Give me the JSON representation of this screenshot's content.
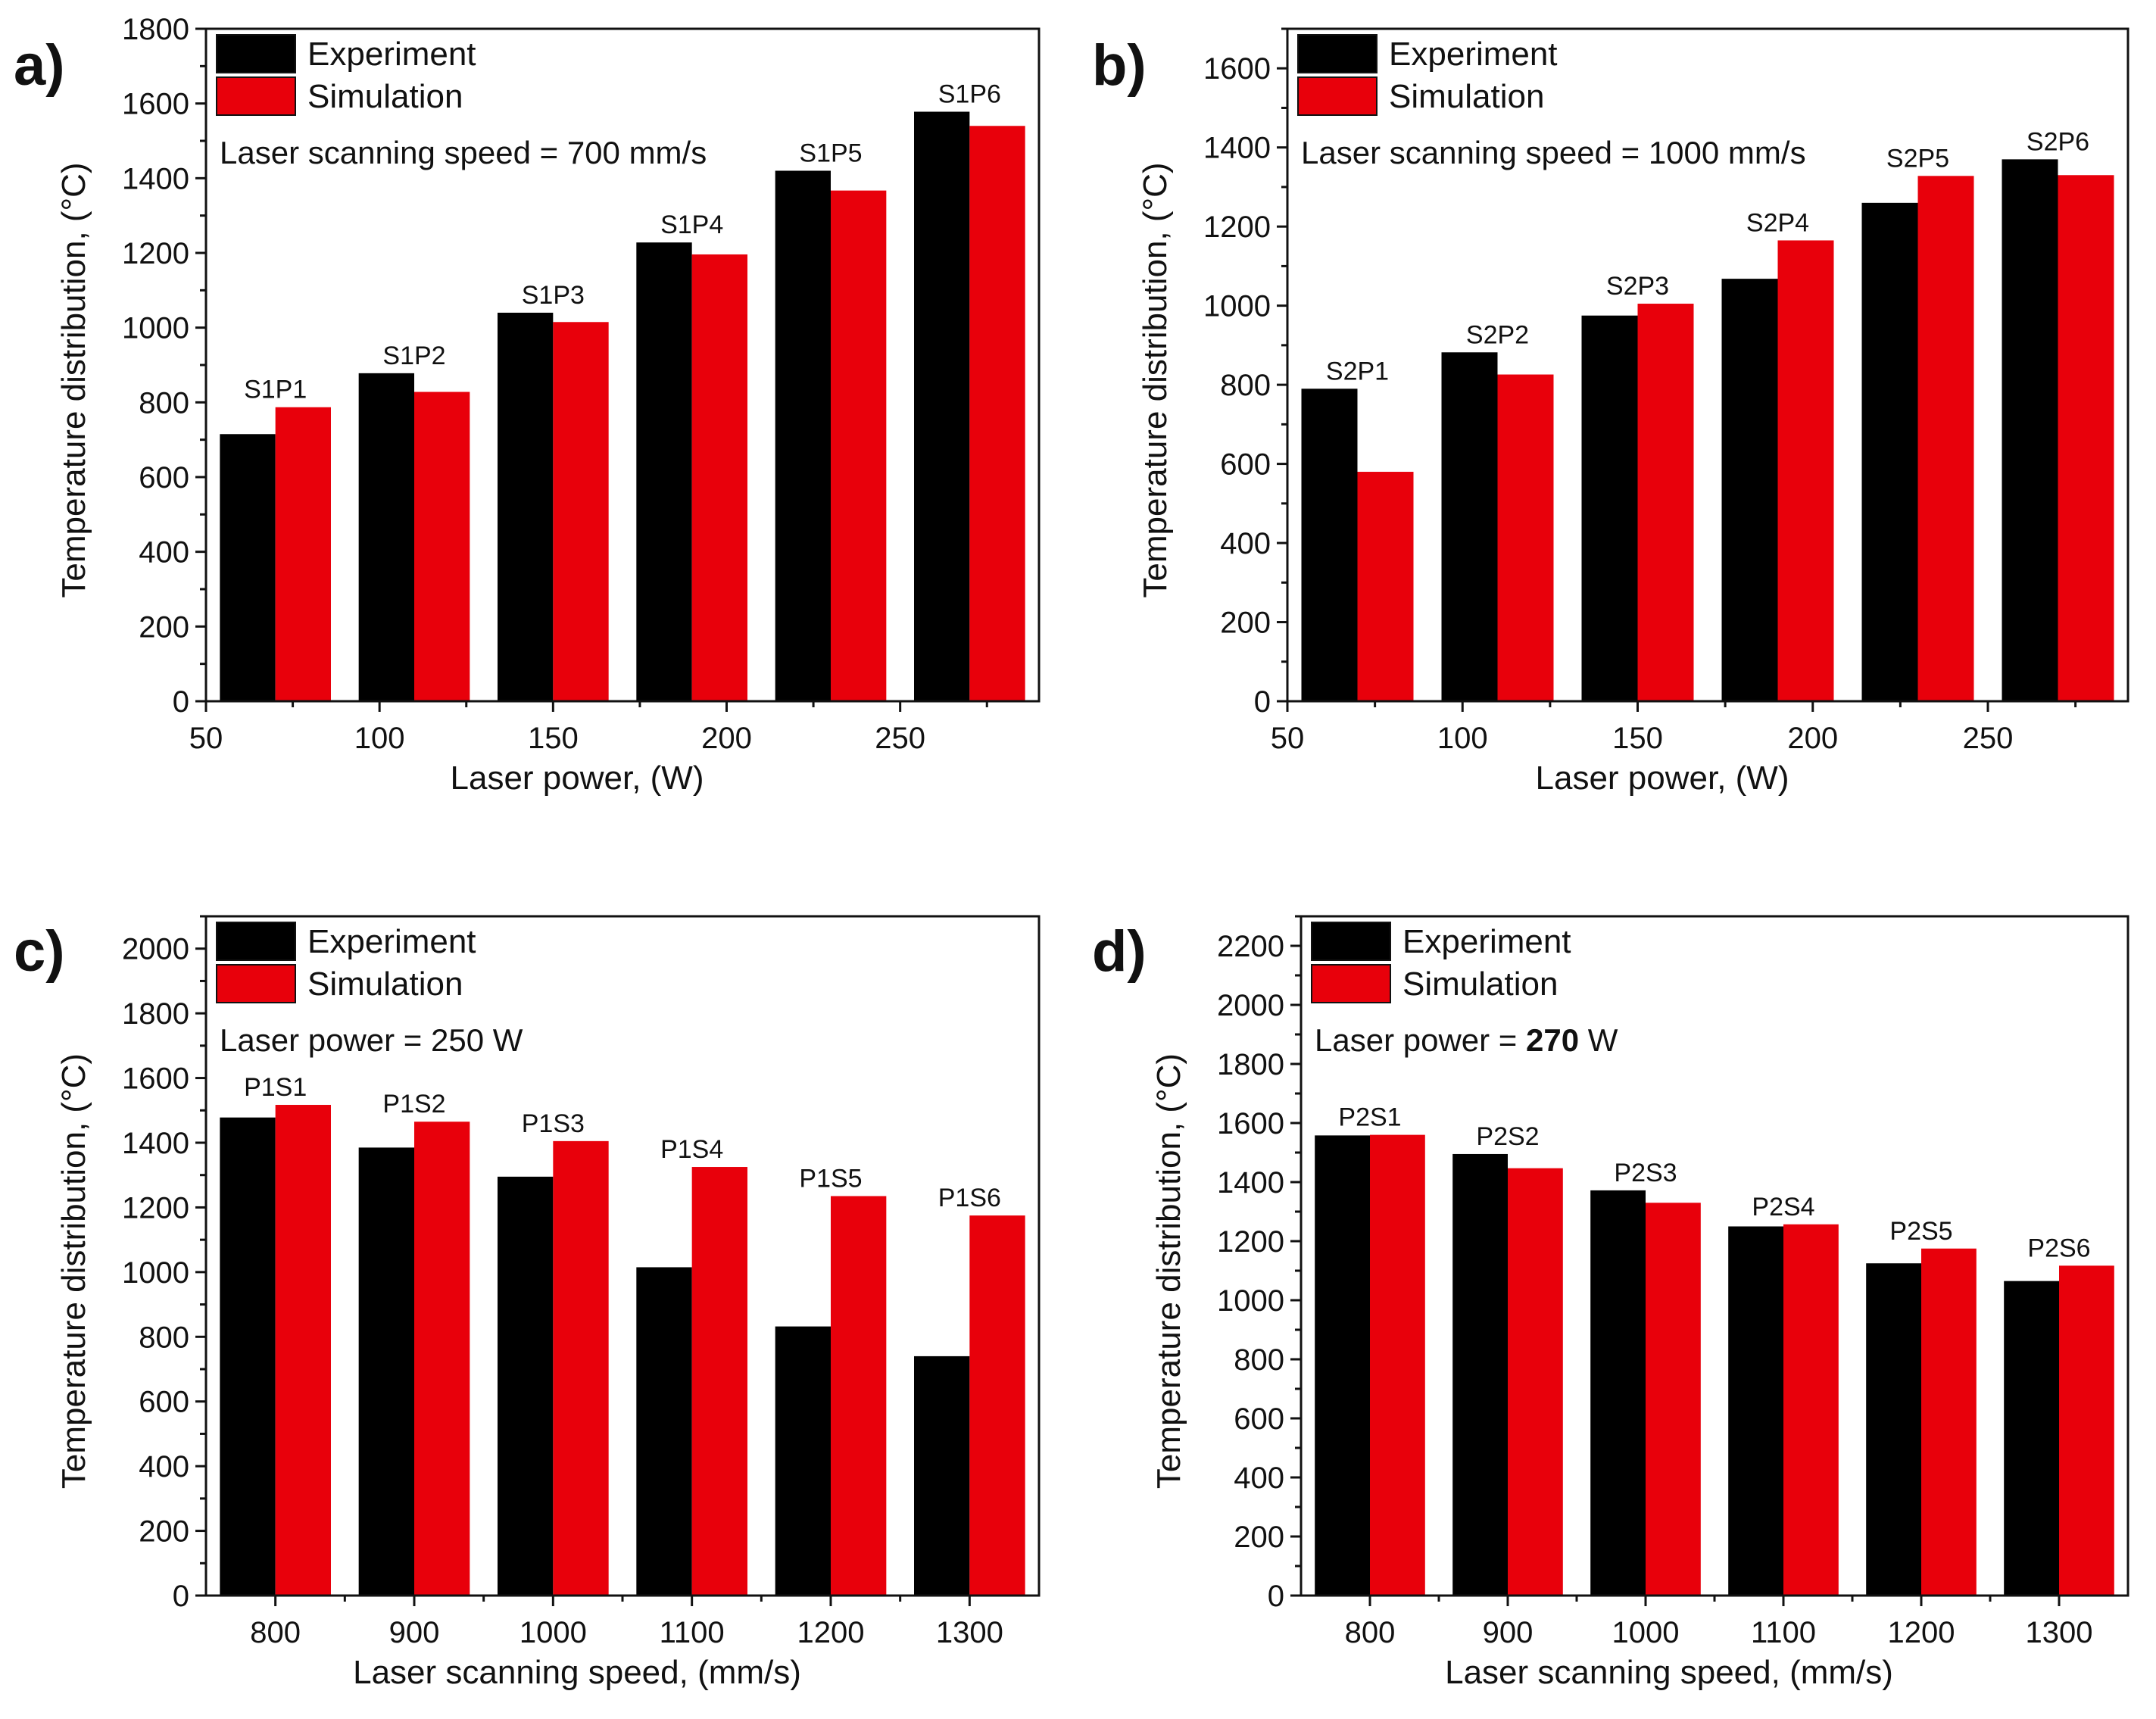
{
  "chart_data": [
    {
      "type": "bar",
      "panel_label": "a)",
      "series": [
        {
          "name": "Experiment",
          "values": [
            715,
            878,
            1040,
            1228,
            1420,
            1578
          ]
        },
        {
          "name": "Simulation",
          "values": [
            787,
            828,
            1015,
            1196,
            1367,
            1540
          ]
        }
      ],
      "bar_labels": [
        "S1P1",
        "S1P2",
        "S1P3",
        "S1P4",
        "S1P5",
        "S1P6"
      ],
      "x_positions": [
        70,
        110,
        150,
        190,
        230,
        270
      ],
      "xlim": [
        50,
        290
      ],
      "x_ticks": [
        50,
        100,
        150,
        200,
        250
      ],
      "x_tick_labels": [
        "50",
        "100",
        "150",
        "200",
        "250"
      ],
      "ylim": [
        0,
        1800
      ],
      "y_ticks": [
        0,
        200,
        400,
        600,
        800,
        1000,
        1200,
        1400,
        1600,
        1800
      ],
      "y_tick_labels": [
        "0",
        "200",
        "400",
        "600",
        "800",
        "1000",
        "1200",
        "1400",
        "1600",
        "1800"
      ],
      "xlabel": "Laser power, (W)",
      "ylabel": "Temperature distribution, (°C)",
      "annotation": "Laser scanning speed = 700 mm/s",
      "legend_placement": "top-left"
    },
    {
      "type": "bar",
      "panel_label": "b)",
      "series": [
        {
          "name": "Experiment",
          "values": [
            790,
            882,
            975,
            1068,
            1260,
            1370
          ]
        },
        {
          "name": "Simulation",
          "values": [
            580,
            826,
            1005,
            1165,
            1328,
            1330
          ]
        }
      ],
      "bar_labels": [
        "S2P1",
        "S2P2",
        "S2P3",
        "S2P4",
        "S2P5",
        "S2P6"
      ],
      "x_positions": [
        70,
        110,
        150,
        190,
        230,
        270
      ],
      "xlim": [
        50,
        290
      ],
      "x_ticks": [
        50,
        100,
        150,
        200,
        250
      ],
      "x_tick_labels": [
        "50",
        "100",
        "150",
        "200",
        "250"
      ],
      "ylim": [
        0,
        1700
      ],
      "y_ticks": [
        0,
        200,
        400,
        600,
        800,
        1000,
        1200,
        1400,
        1600
      ],
      "y_tick_labels": [
        "0",
        "200",
        "400",
        "600",
        "800",
        "1000",
        "1200",
        "1400",
        "1600"
      ],
      "xlabel": "Laser power, (W)",
      "ylabel": "Temperature distribution, (°C)",
      "annotation": "Laser scanning speed = 1000 mm/s",
      "legend_placement": "top-left"
    },
    {
      "type": "bar",
      "panel_label": "c)",
      "series": [
        {
          "name": "Experiment",
          "values": [
            1478,
            1385,
            1295,
            1015,
            832,
            740
          ]
        },
        {
          "name": "Simulation",
          "values": [
            1517,
            1465,
            1405,
            1325,
            1235,
            1175
          ]
        }
      ],
      "bar_labels": [
        "P1S1",
        "P1S2",
        "P1S3",
        "P1S4",
        "P1S5",
        "P1S6"
      ],
      "x_positions": [
        800,
        900,
        1000,
        1100,
        1200,
        1300
      ],
      "xlim": [
        750,
        1350
      ],
      "x_ticks": [
        800,
        900,
        1000,
        1100,
        1200,
        1300
      ],
      "x_tick_labels": [
        "800",
        "900",
        "1000",
        "1100",
        "1200",
        "1300"
      ],
      "ylim": [
        0,
        2100
      ],
      "y_ticks": [
        0,
        200,
        400,
        600,
        800,
        1000,
        1200,
        1400,
        1600,
        1800,
        2000
      ],
      "y_tick_labels": [
        "0",
        "200",
        "400",
        "600",
        "800",
        "1000",
        "1200",
        "1400",
        "1600",
        "1800",
        "2000"
      ],
      "xlabel": "Laser scanning speed, (mm/s)",
      "ylabel": "Temperature distribution, (°C)",
      "annotation": "Laser power = 250 W",
      "legend_placement": "top-left"
    },
    {
      "type": "bar",
      "panel_label": "d)",
      "series": [
        {
          "name": "Experiment",
          "values": [
            1558,
            1495,
            1372,
            1250,
            1125,
            1065
          ]
        },
        {
          "name": "Simulation",
          "values": [
            1560,
            1447,
            1330,
            1257,
            1175,
            1117
          ]
        }
      ],
      "bar_labels": [
        "P2S1",
        "P2S2",
        "P2S3",
        "P2S4",
        "P2S5",
        "P2S6"
      ],
      "x_positions": [
        800,
        900,
        1000,
        1100,
        1200,
        1300
      ],
      "xlim": [
        750,
        1350
      ],
      "x_ticks": [
        800,
        900,
        1000,
        1100,
        1200,
        1300
      ],
      "x_tick_labels": [
        "800",
        "900",
        "1000",
        "1100",
        "1200",
        "1300"
      ],
      "ylim": [
        0,
        2300
      ],
      "y_ticks": [
        0,
        200,
        400,
        600,
        800,
        1000,
        1200,
        1400,
        1600,
        1800,
        2000,
        2200
      ],
      "y_tick_labels": [
        "0",
        "200",
        "400",
        "600",
        "800",
        "1000",
        "1200",
        "1400",
        "1600",
        "1800",
        "2000",
        "2200"
      ],
      "xlabel": "Laser scanning speed, (mm/s)",
      "ylabel": "Temperature distribution, (°C)",
      "annotation": "Laser power = ",
      "annotation_bold": "270",
      "annotation_suffix": " W",
      "legend_placement": "top-left"
    }
  ],
  "colors": {
    "experiment": "#000000",
    "simulation": "#e8000b",
    "axis": "#111111"
  }
}
